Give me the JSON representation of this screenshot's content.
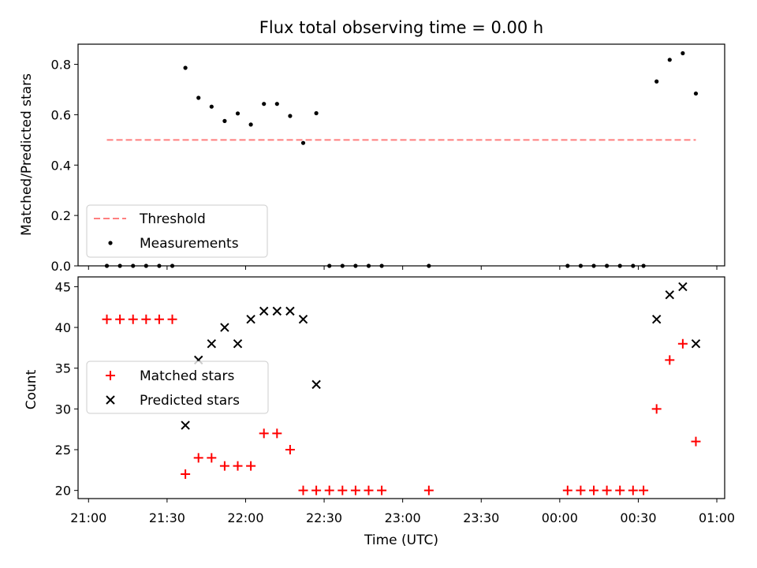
{
  "chart_data": {
    "type": "scatter",
    "title": "Flux total observing time = 0.00 h",
    "xlabel": "Time (UTC)",
    "x_tick_labels": [
      "21:00",
      "21:30",
      "22:00",
      "22:30",
      "23:00",
      "23:30",
      "00:00",
      "00:30",
      "01:00"
    ],
    "x_range": [
      "20:56",
      "01:03"
    ],
    "x_times": [
      "21:07",
      "21:12",
      "21:17",
      "21:22",
      "21:27",
      "21:32",
      "21:37",
      "21:42",
      "21:47",
      "21:52",
      "21:57",
      "22:02",
      "22:07",
      "22:12",
      "22:17",
      "22:22",
      "22:27",
      "22:32",
      "22:37",
      "22:42",
      "22:47",
      "22:52",
      "23:10",
      "24:03",
      "24:08",
      "24:13",
      "24:18",
      "24:23",
      "24:28",
      "24:32",
      "24:37",
      "24:42",
      "24:47",
      "24:52"
    ],
    "panels": [
      {
        "ylabel": "Matched/Predicted stars",
        "ylim": [
          0,
          0.88
        ],
        "y_ticks": [
          "0.0",
          "0.2",
          "0.4",
          "0.6",
          "0.8"
        ],
        "legend": "lower-left",
        "series": [
          {
            "name": "Threshold",
            "kind": "dashed-line",
            "color": "#ff7f7f",
            "x_start": "21:07",
            "x_end": "24:52",
            "value": 0.5
          },
          {
            "name": "Measurements",
            "kind": "dot",
            "color": "#000000",
            "values": [
              0,
              0,
              0,
              0,
              0,
              0,
              0.786,
              0.667,
              0.632,
              0.575,
              0.605,
              0.561,
              0.643,
              0.643,
              0.595,
              0.488,
              0.606,
              0,
              0,
              0,
              0,
              0,
              0,
              0,
              0,
              0,
              0,
              0,
              0,
              0,
              0.732,
              0.818,
              0.844,
              0.684
            ]
          }
        ]
      },
      {
        "ylabel": "Count",
        "ylim": [
          19,
          46.2
        ],
        "y_ticks": [
          "20",
          "25",
          "30",
          "35",
          "40",
          "45"
        ],
        "legend": "center-left",
        "series": [
          {
            "name": "Matched stars",
            "kind": "plus",
            "color": "#ff0000",
            "values": [
              41,
              41,
              41,
              41,
              41,
              41,
              22,
              24,
              24,
              23,
              23,
              23,
              27,
              27,
              25,
              20,
              20,
              20,
              20,
              20,
              20,
              20,
              20,
              20,
              20,
              20,
              20,
              20,
              20,
              20,
              30,
              36,
              38,
              26
            ]
          },
          {
            "name": "Predicted stars",
            "kind": "cross",
            "color": "#000000",
            "values": [
              null,
              null,
              null,
              null,
              null,
              null,
              28,
              36,
              38,
              40,
              38,
              41,
              42,
              42,
              42,
              41,
              33,
              null,
              null,
              null,
              null,
              null,
              null,
              null,
              null,
              null,
              null,
              null,
              null,
              null,
              41,
              44,
              45,
              38
            ]
          }
        ]
      }
    ]
  }
}
